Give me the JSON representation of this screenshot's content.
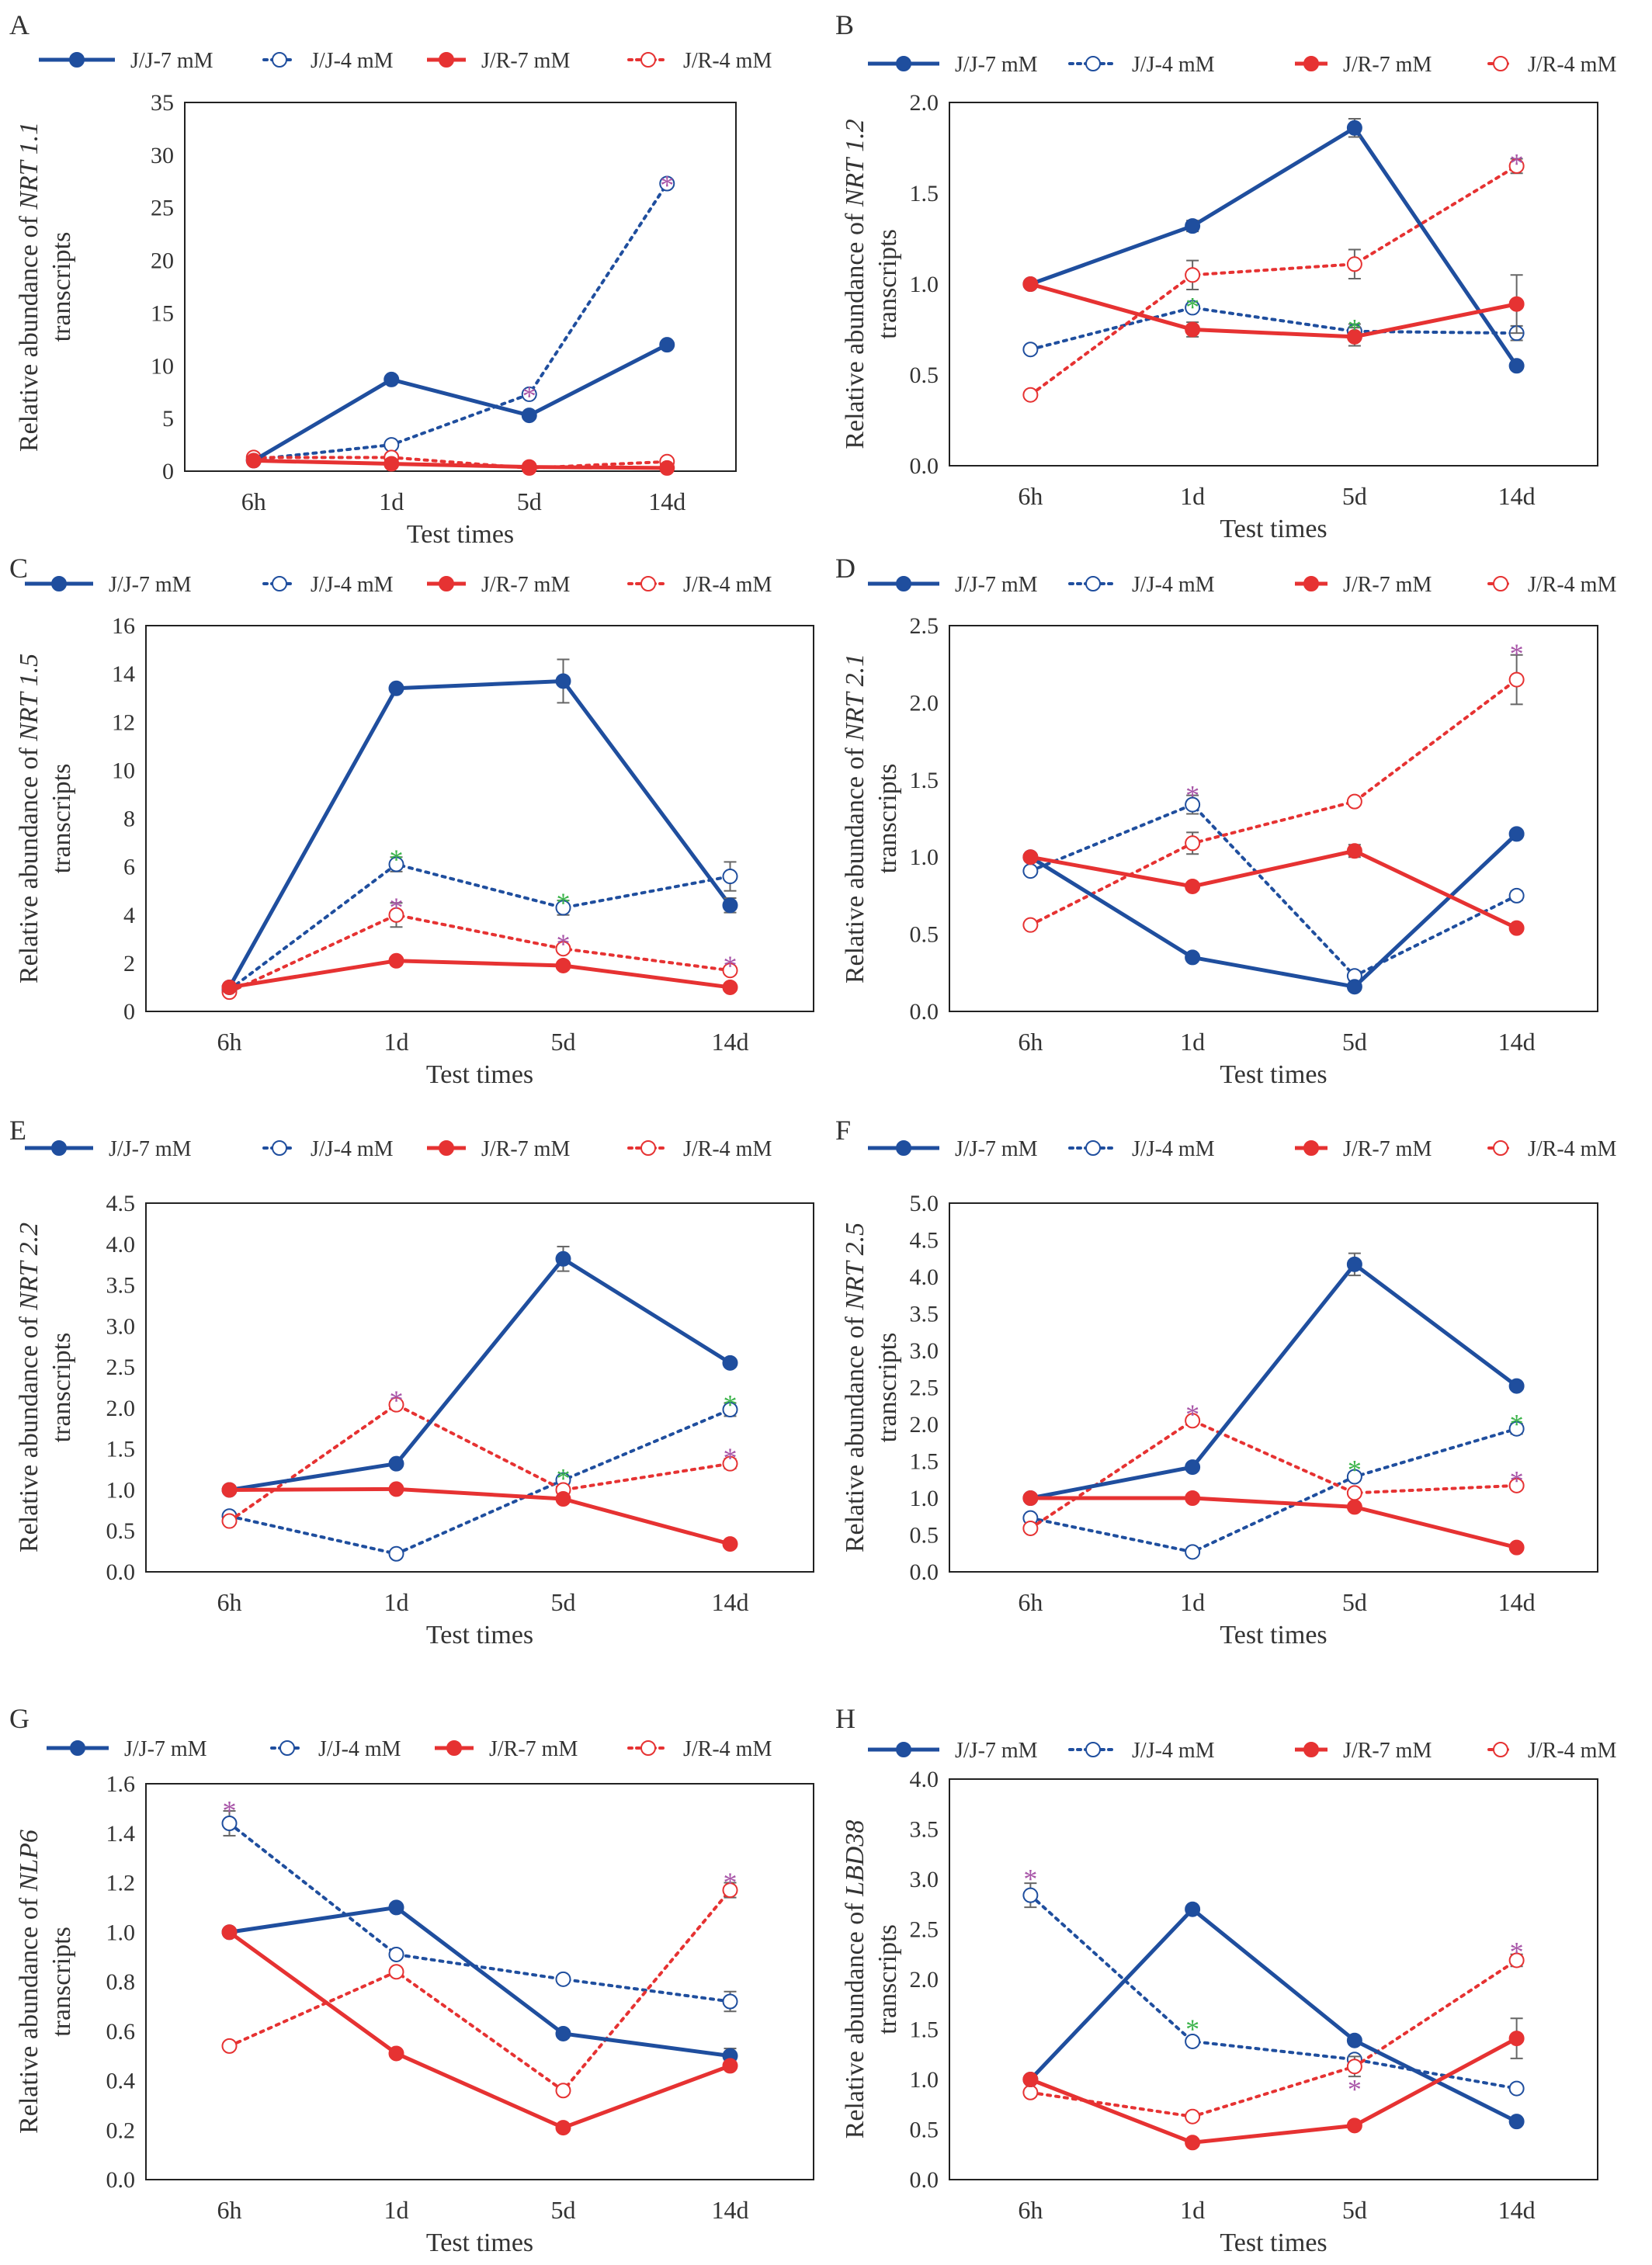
{
  "figure": {
    "x_categories": [
      "6h",
      "1d",
      "5d",
      "14d"
    ]
  },
  "legend": {
    "entries": [
      {
        "name": "J/J-7 mM",
        "color": "#1f4e9e",
        "dashed": false,
        "filled": true
      },
      {
        "name": "J/J-4 mM",
        "color": "#1f4e9e",
        "dashed": true,
        "filled": false
      },
      {
        "name": "J/R-7 mM",
        "color": "#e63232",
        "dashed": false,
        "filled": true
      },
      {
        "name": "J/R-4 mM",
        "color": "#e63232",
        "dashed": true,
        "filled": false
      }
    ]
  },
  "colors": {
    "sig_purple": "#a855a8",
    "sig_green": "#3cb44b"
  },
  "chart_data": [
    {
      "type": "line",
      "panel_label": "A",
      "gene": "NRT 1.1",
      "ylabel_prefix": "Relative abundance of ",
      "ylabel_suffix": "transcripts",
      "xlabel": "Test times",
      "ylim": [
        0,
        35
      ],
      "yticks": [
        0,
        5,
        10,
        15,
        20,
        25,
        30,
        35
      ],
      "tick_decimals": 0,
      "categories": [
        "6h",
        "1d",
        "5d",
        "14d"
      ],
      "series": [
        {
          "name": "J/J-7 mM",
          "values": [
            1.0,
            8.7,
            5.3,
            12.0
          ],
          "err": [
            0,
            0,
            0,
            0
          ]
        },
        {
          "name": "J/J-4 mM",
          "values": [
            1.1,
            2.5,
            7.3,
            27.3
          ],
          "err": [
            0,
            0,
            0.3,
            0.3
          ]
        },
        {
          "name": "J/R-7 mM",
          "values": [
            1.0,
            0.7,
            0.4,
            0.3
          ],
          "err": [
            0,
            0,
            0,
            0
          ]
        },
        {
          "name": "J/R-4 mM",
          "values": [
            1.3,
            1.3,
            0.3,
            0.9
          ],
          "err": [
            0,
            0,
            0,
            0
          ]
        }
      ],
      "sig": [
        {
          "cat": 2,
          "y": 7.6,
          "color": "purple"
        },
        {
          "cat": 3,
          "y": 27.6,
          "color": "purple"
        }
      ]
    },
    {
      "type": "line",
      "panel_label": "B",
      "gene": "NRT 1.2",
      "ylabel_prefix": "Relative abundance of ",
      "ylabel_suffix": "transcripts",
      "xlabel": "Test times",
      "ylim": [
        0,
        2.0
      ],
      "yticks": [
        0,
        0.5,
        1.0,
        1.5,
        2.0
      ],
      "tick_decimals": 1,
      "categories": [
        "6h",
        "1d",
        "5d",
        "14d"
      ],
      "series": [
        {
          "name": "J/J-7 mM",
          "values": [
            1.0,
            1.32,
            1.86,
            0.55
          ],
          "err": [
            0,
            0.03,
            0.05,
            0
          ]
        },
        {
          "name": "J/J-4 mM",
          "values": [
            0.64,
            0.87,
            0.74,
            0.73
          ],
          "err": [
            0,
            0.02,
            0.04,
            0.04
          ]
        },
        {
          "name": "J/R-7 mM",
          "values": [
            1.0,
            0.75,
            0.71,
            0.89
          ],
          "err": [
            0,
            0.04,
            0.05,
            0.16
          ]
        },
        {
          "name": "J/R-4 mM",
          "values": [
            0.39,
            1.05,
            1.11,
            1.65
          ],
          "err": [
            0,
            0.08,
            0.08,
            0.04
          ]
        }
      ],
      "sig": [
        {
          "cat": 1,
          "y": 0.9,
          "color": "green"
        },
        {
          "cat": 2,
          "y": 0.78,
          "color": "green"
        },
        {
          "cat": 3,
          "y": 1.69,
          "color": "purple"
        }
      ]
    },
    {
      "type": "line",
      "panel_label": "C",
      "gene": "NRT 1.5",
      "ylabel_prefix": "Relative abundance of ",
      "ylabel_suffix": "transcripts",
      "xlabel": "Test times",
      "ylim": [
        0,
        16
      ],
      "yticks": [
        0,
        2,
        4,
        6,
        8,
        10,
        12,
        14,
        16
      ],
      "tick_decimals": 0,
      "categories": [
        "6h",
        "1d",
        "5d",
        "14d"
      ],
      "series": [
        {
          "name": "J/J-7 mM",
          "values": [
            1.0,
            13.4,
            13.7,
            4.4
          ],
          "err": [
            0,
            0,
            0.9,
            0.3
          ]
        },
        {
          "name": "J/J-4 mM",
          "values": [
            0.9,
            6.1,
            4.3,
            5.6
          ],
          "err": [
            0,
            0.3,
            0.3,
            0.6
          ]
        },
        {
          "name": "J/R-7 mM",
          "values": [
            1.0,
            2.1,
            1.9,
            1.0
          ],
          "err": [
            0,
            0,
            0,
            0
          ]
        },
        {
          "name": "J/R-4 mM",
          "values": [
            0.8,
            4.0,
            2.6,
            1.7
          ],
          "err": [
            0,
            0.5,
            0,
            0
          ]
        }
      ],
      "sig": [
        {
          "cat": 1,
          "y": 6.5,
          "color": "green"
        },
        {
          "cat": 1,
          "y": 4.5,
          "color": "purple"
        },
        {
          "cat": 2,
          "y": 4.7,
          "color": "green"
        },
        {
          "cat": 2,
          "y": 3.0,
          "color": "purple"
        },
        {
          "cat": 3,
          "y": 2.1,
          "color": "purple"
        }
      ]
    },
    {
      "type": "line",
      "panel_label": "D",
      "gene": "NRT 2.1",
      "ylabel_prefix": "Relative abundance of ",
      "ylabel_suffix": "transcripts",
      "xlabel": "Test times",
      "ylim": [
        0,
        2.5
      ],
      "yticks": [
        0,
        0.5,
        1.0,
        1.5,
        2.0,
        2.5
      ],
      "tick_decimals": 1,
      "categories": [
        "6h",
        "1d",
        "5d",
        "14d"
      ],
      "series": [
        {
          "name": "J/J-7 mM",
          "values": [
            1.0,
            0.35,
            0.16,
            1.15
          ],
          "err": [
            0,
            0,
            0,
            0
          ]
        },
        {
          "name": "J/J-4 mM",
          "values": [
            0.91,
            1.34,
            0.23,
            0.75
          ],
          "err": [
            0,
            0.06,
            0.03,
            0.03
          ]
        },
        {
          "name": "J/R-7 mM",
          "values": [
            1.0,
            0.81,
            1.04,
            0.54
          ],
          "err": [
            0,
            0,
            0.04,
            0
          ]
        },
        {
          "name": "J/R-4 mM",
          "values": [
            0.56,
            1.09,
            1.36,
            2.15
          ],
          "err": [
            0,
            0.07,
            0,
            0.16
          ]
        }
      ],
      "sig": [
        {
          "cat": 1,
          "y": 1.43,
          "color": "purple"
        },
        {
          "cat": 3,
          "y": 2.35,
          "color": "purple"
        }
      ]
    },
    {
      "type": "line",
      "panel_label": "E",
      "gene": "NRT 2.2",
      "ylabel_prefix": "Relative abundance of ",
      "ylabel_suffix": "transcripts",
      "xlabel": "Test times",
      "ylim": [
        0,
        4.5
      ],
      "yticks": [
        0,
        0.5,
        1.0,
        1.5,
        2.0,
        2.5,
        3.0,
        3.5,
        4.0,
        4.5
      ],
      "tick_decimals": 1,
      "categories": [
        "6h",
        "1d",
        "5d",
        "14d"
      ],
      "series": [
        {
          "name": "J/J-7 mM",
          "values": [
            1.0,
            1.32,
            3.82,
            2.55
          ],
          "err": [
            0,
            0,
            0.15,
            0
          ]
        },
        {
          "name": "J/J-4 mM",
          "values": [
            0.68,
            0.22,
            1.12,
            1.98
          ],
          "err": [
            0,
            0,
            0.05,
            0.08
          ]
        },
        {
          "name": "J/R-7 mM",
          "values": [
            1.0,
            1.01,
            0.89,
            0.34
          ],
          "err": [
            0,
            0,
            0,
            0
          ]
        },
        {
          "name": "J/R-4 mM",
          "values": [
            0.62,
            2.04,
            1.0,
            1.32
          ],
          "err": [
            0,
            0,
            0,
            0.06
          ]
        }
      ],
      "sig": [
        {
          "cat": 1,
          "y": 2.15,
          "color": "purple"
        },
        {
          "cat": 2,
          "y": 1.2,
          "color": "green"
        },
        {
          "cat": 3,
          "y": 2.1,
          "color": "green"
        },
        {
          "cat": 3,
          "y": 1.45,
          "color": "purple"
        }
      ]
    },
    {
      "type": "line",
      "panel_label": "F",
      "gene": "NRT 2.5",
      "ylabel_prefix": "Relative abundance of ",
      "ylabel_suffix": "transcripts",
      "xlabel": "Test times",
      "ylim": [
        0,
        5.0
      ],
      "yticks": [
        0,
        0.5,
        1.0,
        1.5,
        2.0,
        2.5,
        3.0,
        3.5,
        4.0,
        4.5,
        5.0
      ],
      "tick_decimals": 1,
      "categories": [
        "6h",
        "1d",
        "5d",
        "14d"
      ],
      "series": [
        {
          "name": "J/J-7 mM",
          "values": [
            1.0,
            1.42,
            4.17,
            2.52
          ],
          "err": [
            0,
            0,
            0.15,
            0
          ]
        },
        {
          "name": "J/J-4 mM",
          "values": [
            0.73,
            0.27,
            1.29,
            1.94
          ],
          "err": [
            0,
            0,
            0.06,
            0.07
          ]
        },
        {
          "name": "J/R-7 mM",
          "values": [
            1.0,
            1.0,
            0.88,
            0.33
          ],
          "err": [
            0,
            0,
            0,
            0
          ]
        },
        {
          "name": "J/R-4 mM",
          "values": [
            0.59,
            2.05,
            1.07,
            1.17
          ],
          "err": [
            0,
            0,
            0,
            0.05
          ]
        }
      ],
      "sig": [
        {
          "cat": 1,
          "y": 2.2,
          "color": "purple"
        },
        {
          "cat": 2,
          "y": 1.45,
          "color": "green"
        },
        {
          "cat": 3,
          "y": 2.07,
          "color": "green"
        },
        {
          "cat": 3,
          "y": 1.3,
          "color": "purple"
        }
      ]
    },
    {
      "type": "line",
      "panel_label": "G",
      "gene": "NLP6",
      "ylabel_prefix": "Relative abundance of ",
      "ylabel_suffix": "transcripts",
      "xlabel": "Test times",
      "ylim": [
        0,
        1.6
      ],
      "yticks": [
        0,
        0.2,
        0.4,
        0.6,
        0.8,
        1.0,
        1.2,
        1.4,
        1.6
      ],
      "tick_decimals": 1,
      "categories": [
        "6h",
        "1d",
        "5d",
        "14d"
      ],
      "series": [
        {
          "name": "J/J-7 mM",
          "values": [
            1.0,
            1.1,
            0.59,
            0.5
          ],
          "err": [
            0,
            0,
            0,
            0.03
          ]
        },
        {
          "name": "J/J-4 mM",
          "values": [
            1.44,
            0.91,
            0.81,
            0.72
          ],
          "err": [
            0.05,
            0,
            0,
            0.04
          ]
        },
        {
          "name": "J/R-7 mM",
          "values": [
            1.0,
            0.51,
            0.21,
            0.46
          ],
          "err": [
            0,
            0,
            0,
            0
          ]
        },
        {
          "name": "J/R-4 mM",
          "values": [
            0.54,
            0.84,
            0.36,
            1.17
          ],
          "err": [
            0,
            0,
            0,
            0.03
          ]
        }
      ],
      "sig": [
        {
          "cat": 0,
          "y": 1.51,
          "color": "purple"
        },
        {
          "cat": 3,
          "y": 1.22,
          "color": "purple"
        }
      ]
    },
    {
      "type": "line",
      "panel_label": "H",
      "gene": "LBD38",
      "ylabel_prefix": "Relative abundance of ",
      "ylabel_suffix": "transcripts",
      "xlabel": "Test times",
      "ylim": [
        0,
        4.0
      ],
      "yticks": [
        0,
        0.5,
        1.0,
        1.5,
        2.0,
        2.5,
        3.0,
        3.5,
        4.0
      ],
      "tick_decimals": 1,
      "categories": [
        "6h",
        "1d",
        "5d",
        "14d"
      ],
      "series": [
        {
          "name": "J/J-7 mM",
          "values": [
            1.0,
            2.7,
            1.39,
            0.58
          ],
          "err": [
            0,
            0,
            0,
            0
          ]
        },
        {
          "name": "J/J-4 mM",
          "values": [
            2.84,
            1.38,
            1.2,
            0.91
          ],
          "err": [
            0.12,
            0,
            0,
            0
          ]
        },
        {
          "name": "J/R-7 mM",
          "values": [
            1.0,
            0.37,
            0.54,
            1.41
          ],
          "err": [
            0,
            0,
            0,
            0.2
          ]
        },
        {
          "name": "J/R-4 mM",
          "values": [
            0.87,
            0.63,
            1.13,
            2.19
          ],
          "err": [
            0,
            0,
            0.1,
            0.06
          ]
        }
      ],
      "sig": [
        {
          "cat": 0,
          "y": 3.05,
          "color": "purple"
        },
        {
          "cat": 1,
          "y": 1.55,
          "color": "green"
        },
        {
          "cat": 2,
          "y": 0.95,
          "color": "purple"
        },
        {
          "cat": 3,
          "y": 2.32,
          "color": "purple"
        }
      ]
    }
  ]
}
